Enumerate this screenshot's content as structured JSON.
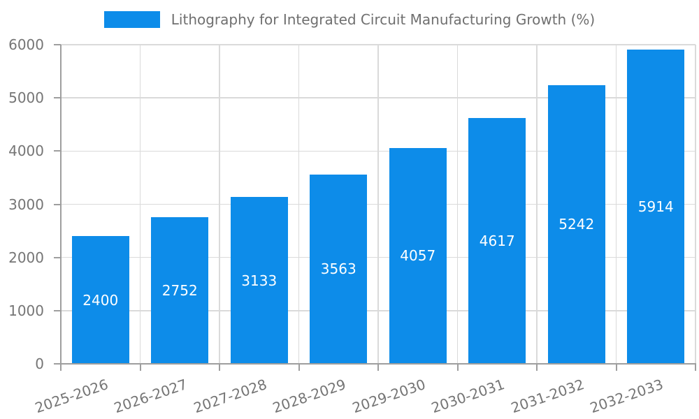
{
  "chart_data": {
    "type": "bar",
    "title": "Lithography for Integrated Circuit Manufacturing Growth (%)",
    "categories": [
      "2025-2026",
      "2026-2027",
      "2027-2028",
      "2028-2029",
      "2029-2030",
      "2030-2031",
      "2031-2032",
      "2032-2033"
    ],
    "values": [
      2400,
      2752,
      3133,
      3563,
      4057,
      4617,
      5242,
      5914
    ],
    "value_labels_visible": true,
    "xlabel": "",
    "ylabel": "",
    "ylim": [
      0,
      6000
    ],
    "yticks": [
      0,
      1000,
      2000,
      3000,
      4000,
      5000,
      6000
    ],
    "grid": true,
    "legend_position": "top",
    "x_label_rotation_deg": -19,
    "colors": {
      "bar": "#0d8ce9",
      "value_label": "#ffffff",
      "tick_label": "#757575",
      "legend_text": "#6f6f6f",
      "gridline": "#dadada",
      "axis_line": "#9e9e9e",
      "background": "#ffffff"
    }
  }
}
